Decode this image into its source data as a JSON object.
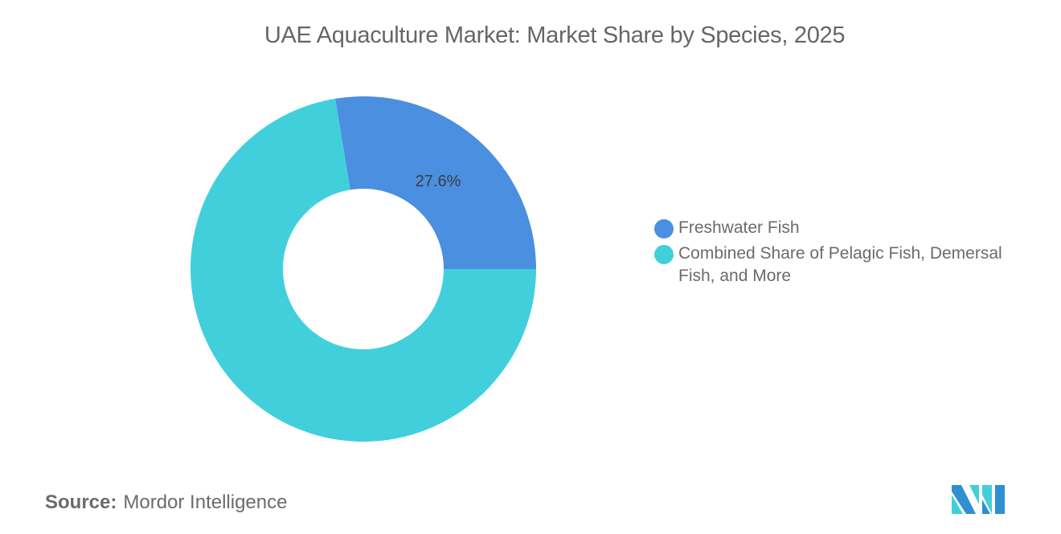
{
  "title": "UAE Aquaculture Market: Market Share by Species, 2025",
  "chart_data": {
    "type": "pie",
    "variant": "donut",
    "title": "UAE Aquaculture Market: Market Share by Species, 2025",
    "categories": [
      "Freshwater Fish",
      "Combined Share of Pelagic Fish, Demersal Fish, and More"
    ],
    "values": [
      27.6,
      72.4
    ],
    "colors": [
      "#4a8fe0",
      "#41d0db"
    ],
    "data_labels": [
      "27.6%",
      ""
    ],
    "legend_position": "right"
  },
  "labels": {
    "freshwater_pct": "27.6%"
  },
  "legend": [
    {
      "label": "Freshwater Fish",
      "color": "#4a8fe0"
    },
    {
      "label": "Combined Share of Pelagic Fish, Demersal Fish, and More",
      "color": "#41d0db"
    }
  ],
  "source": {
    "prefix": "Source:",
    "name": "Mordor Intelligence"
  }
}
